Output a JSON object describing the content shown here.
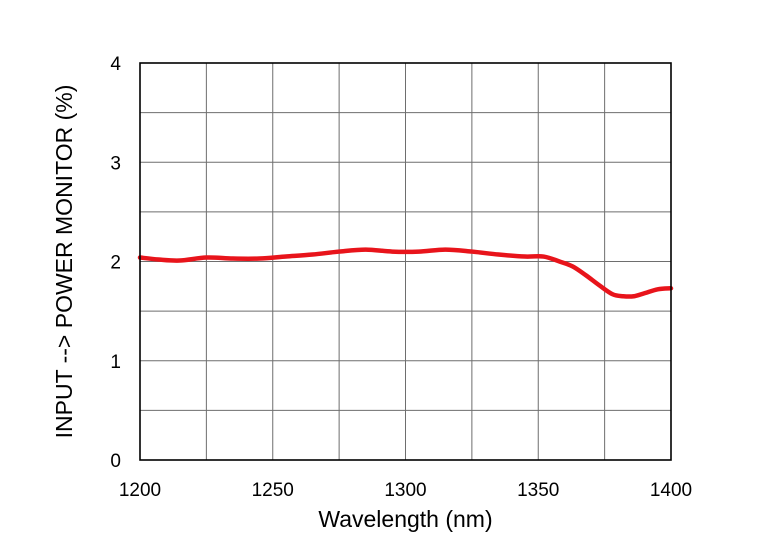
{
  "chart_data": {
    "type": "line",
    "xlabel": "Wavelength (nm)",
    "ylabel": "INPUT --> POWER MONITOR (%)",
    "xlim": [
      1200,
      1400
    ],
    "ylim": [
      0,
      4
    ],
    "x_ticks": [
      1200,
      1250,
      1300,
      1350,
      1400
    ],
    "y_ticks": [
      0,
      1,
      2,
      3,
      4
    ],
    "x_minor_step": 25,
    "y_minor_step": 0.5,
    "grid": true,
    "line_color": "#e8141b",
    "series": [
      {
        "x": [
          1200,
          1207,
          1215,
          1225,
          1235,
          1245,
          1255,
          1265,
          1275,
          1285,
          1295,
          1305,
          1315,
          1325,
          1335,
          1345,
          1352,
          1358,
          1363,
          1368,
          1373,
          1378,
          1382,
          1386,
          1390,
          1395,
          1400
        ],
        "values": [
          2.04,
          2.02,
          2.01,
          2.04,
          2.03,
          2.03,
          2.05,
          2.07,
          2.1,
          2.12,
          2.1,
          2.1,
          2.12,
          2.1,
          2.07,
          2.05,
          2.05,
          2.0,
          1.95,
          1.86,
          1.76,
          1.67,
          1.65,
          1.65,
          1.68,
          1.72,
          1.73
        ]
      }
    ]
  }
}
